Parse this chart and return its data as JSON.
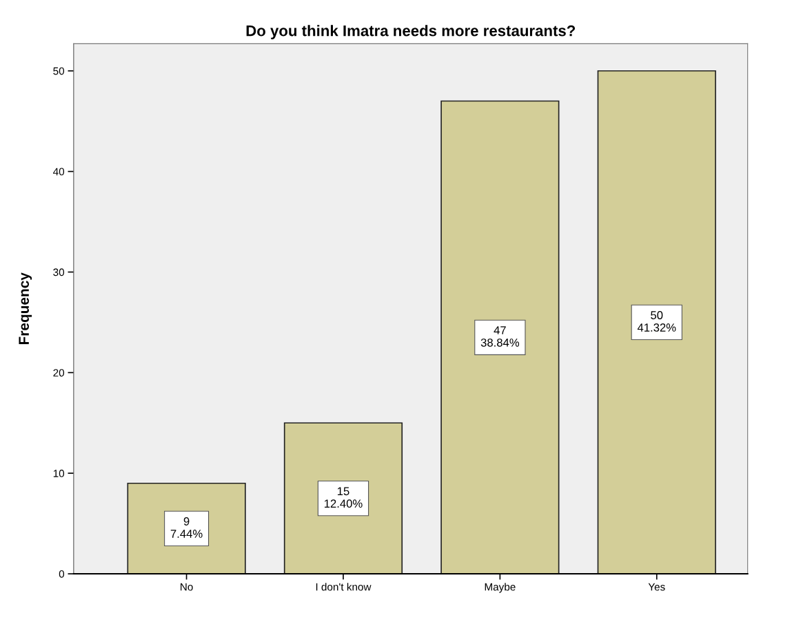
{
  "chart_data": {
    "type": "bar",
    "title": "Do you think Imatra needs more restaurants?",
    "ylabel": "Frequency",
    "categories": [
      "No",
      "I don't know",
      "Maybe",
      "Yes"
    ],
    "values": [
      9,
      15,
      47,
      50
    ],
    "value_labels": [
      "9\n7.44%",
      "15\n12.40%",
      "47\n38.84%",
      "50\n41.32%"
    ],
    "color": "#d3ce98",
    "ylim": [
      0,
      52.7
    ],
    "yticks": [
      0,
      10,
      20,
      30,
      40,
      50
    ],
    "grid": false,
    "legend": false
  }
}
